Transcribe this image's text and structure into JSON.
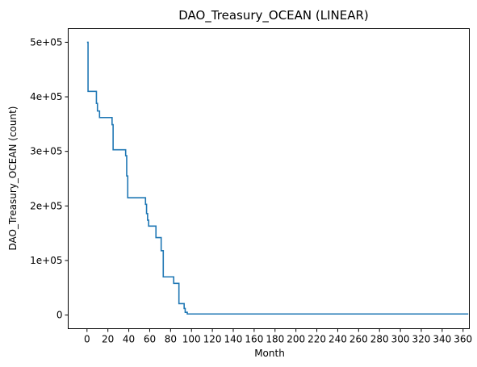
{
  "chart_data": {
    "type": "line",
    "title": "DAO_Treasury_OCEAN (LINEAR)",
    "xlabel": "Month",
    "ylabel": "DAO_Treasury_OCEAN (count)",
    "xlim": [
      -18,
      366
    ],
    "ylim": [
      -25000,
      525000
    ],
    "x_ticks": [
      0,
      20,
      40,
      60,
      80,
      100,
      120,
      140,
      160,
      180,
      200,
      220,
      240,
      260,
      280,
      300,
      320,
      340,
      360
    ],
    "x_tick_labels": [
      "0",
      "20",
      "40",
      "60",
      "80",
      "100",
      "120",
      "140",
      "160",
      "180",
      "200",
      "220",
      "240",
      "260",
      "280",
      "300",
      "320",
      "340",
      "360"
    ],
    "y_ticks": [
      0,
      100000,
      200000,
      300000,
      400000,
      500000
    ],
    "y_tick_labels": [
      "0",
      "1e+05",
      "2e+05",
      "3e+05",
      "4e+05",
      "5e+05"
    ],
    "grid": false,
    "legend": "none",
    "series": [
      {
        "color": "#1f77b4",
        "step": "post",
        "x": [
          0,
          1,
          9,
          10,
          12,
          24,
          25,
          37,
          38,
          39,
          56,
          57,
          58,
          59,
          65,
          66,
          70,
          71,
          73,
          79,
          83,
          84,
          88,
          89,
          93,
          94,
          96,
          97,
          365
        ],
        "y": [
          500000,
          410000,
          388000,
          374000,
          362000,
          349000,
          303000,
          292000,
          255000,
          215000,
          203000,
          186000,
          174000,
          163000,
          163000,
          142000,
          142000,
          118000,
          70000,
          70000,
          58000,
          58000,
          21000,
          21000,
          12000,
          5000,
          2000,
          2000,
          2000
        ]
      }
    ]
  }
}
